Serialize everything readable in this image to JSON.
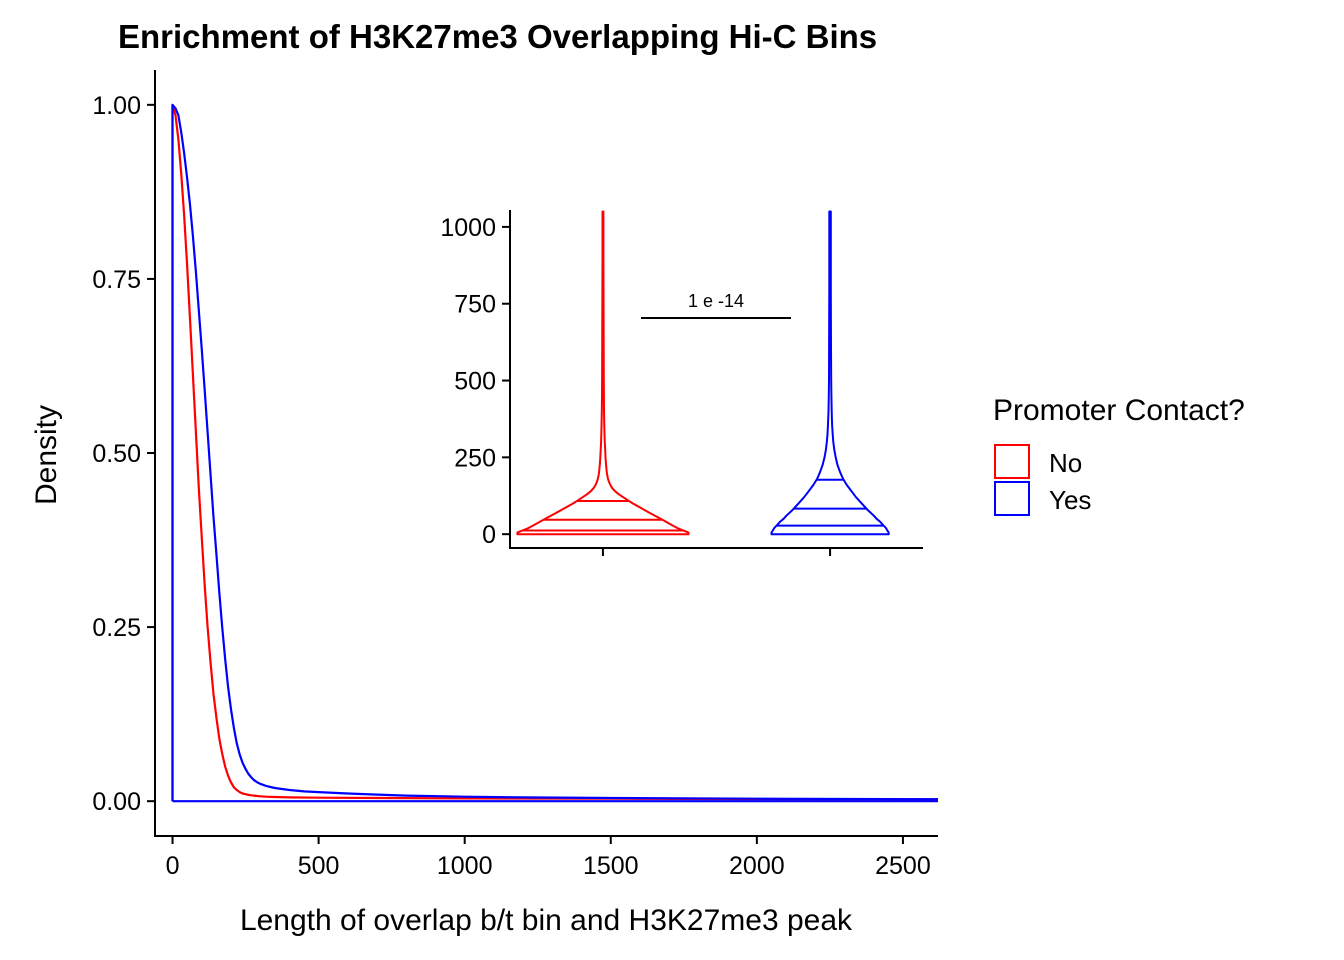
{
  "chart_data": [
    {
      "type": "line",
      "title": "Enrichment of H3K27me3 Overlapping Hi-C Bins",
      "xlabel": "Length of overlap b/t bin and H3K27me3 peak",
      "ylabel": "Density",
      "xlim": [
        -60,
        2620
      ],
      "ylim": [
        -0.05,
        1.05
      ],
      "x_ticks": [
        0,
        500,
        1000,
        1500,
        2000,
        2500
      ],
      "x_tick_labels": [
        "0",
        "500",
        "1000",
        "1500",
        "2000",
        "2500"
      ],
      "y_ticks": [
        0,
        0.25,
        0.5,
        0.75,
        1.0
      ],
      "y_tick_labels": [
        "0.00",
        "0.25",
        "0.50",
        "0.75",
        "1.00"
      ],
      "grid": false,
      "legend": {
        "title": "Promoter Contact?",
        "placement": "right",
        "entries": [
          "No",
          "Yes"
        ]
      },
      "series": [
        {
          "name": "No",
          "color": "#ff0000",
          "x": [
            0,
            0,
            10,
            20,
            30,
            40,
            50,
            60,
            70,
            80,
            90,
            100,
            110,
            120,
            130,
            140,
            150,
            160,
            170,
            180,
            190,
            200,
            210,
            220,
            230,
            240,
            250,
            260,
            270,
            280,
            290,
            300,
            320,
            350,
            400,
            500,
            700,
            1000,
            1500,
            2000,
            2620
          ],
          "y": [
            0,
            1.0,
            0.985,
            0.95,
            0.9,
            0.84,
            0.77,
            0.69,
            0.61,
            0.53,
            0.45,
            0.38,
            0.31,
            0.25,
            0.2,
            0.155,
            0.12,
            0.09,
            0.068,
            0.05,
            0.037,
            0.027,
            0.02,
            0.016,
            0.013,
            0.011,
            0.01,
            0.009,
            0.0085,
            0.008,
            0.0075,
            0.007,
            0.0065,
            0.006,
            0.0055,
            0.005,
            0.0045,
            0.004,
            0.0035,
            0.003,
            0.0025
          ]
        },
        {
          "name": "Yes",
          "color": "#0000ff",
          "x": [
            0,
            0,
            10,
            20,
            30,
            40,
            50,
            60,
            70,
            80,
            90,
            100,
            110,
            120,
            130,
            140,
            150,
            160,
            170,
            180,
            190,
            200,
            210,
            220,
            230,
            240,
            250,
            260,
            270,
            280,
            290,
            300,
            320,
            350,
            400,
            450,
            500,
            600,
            700,
            800,
            1000,
            1200,
            1500,
            2000,
            2620
          ],
          "y": [
            0,
            1.0,
            0.995,
            0.985,
            0.96,
            0.93,
            0.895,
            0.855,
            0.81,
            0.76,
            0.705,
            0.65,
            0.59,
            0.53,
            0.47,
            0.41,
            0.355,
            0.3,
            0.25,
            0.205,
            0.165,
            0.132,
            0.105,
            0.083,
            0.067,
            0.055,
            0.046,
            0.039,
            0.034,
            0.03,
            0.027,
            0.025,
            0.022,
            0.019,
            0.016,
            0.014,
            0.013,
            0.011,
            0.0095,
            0.008,
            0.0065,
            0.0055,
            0.0045,
            0.0035,
            0.0028
          ]
        },
        {
          "name": "Yes-baseline",
          "color": "#0000ff",
          "x": [
            0,
            2620
          ],
          "y": [
            0,
            0
          ]
        }
      ]
    },
    {
      "type": "violin",
      "inset": true,
      "ylim": [
        -45,
        1055
      ],
      "y_ticks": [
        0,
        250,
        500,
        750,
        1000
      ],
      "y_tick_labels": [
        "0",
        "250",
        "500",
        "750",
        "1000"
      ],
      "categories": [
        "No",
        "Yes"
      ],
      "series": [
        {
          "name": "No",
          "color": "#ff0000",
          "profile_y": [
            0,
            5,
            10,
            15,
            20,
            30,
            40,
            50,
            60,
            70,
            80,
            90,
            100,
            110,
            120,
            130,
            140,
            150,
            160,
            170,
            180,
            190,
            200,
            225,
            250,
            275,
            300,
            325,
            350,
            400,
            450,
            500,
            600,
            700,
            800,
            900,
            1000,
            1050
          ],
          "profile_halfwidth": [
            0.92,
            0.92,
            0.88,
            0.84,
            0.8,
            0.74,
            0.68,
            0.62,
            0.56,
            0.5,
            0.44,
            0.38,
            0.32,
            0.27,
            0.22,
            0.17,
            0.13,
            0.1,
            0.08,
            0.065,
            0.055,
            0.048,
            0.042,
            0.034,
            0.028,
            0.024,
            0.02,
            0.017,
            0.015,
            0.012,
            0.01,
            0.009,
            0.008,
            0.007,
            0.006,
            0.005,
            0.005,
            0.005
          ],
          "quantiles": [
            12,
            47,
            108
          ]
        },
        {
          "name": "Yes",
          "color": "#0000ff",
          "profile_y": [
            0,
            5,
            10,
            20,
            30,
            40,
            50,
            60,
            80,
            100,
            120,
            140,
            160,
            180,
            200,
            225,
            250,
            275,
            300,
            325,
            350,
            375,
            400,
            450,
            500,
            600,
            700,
            800,
            900,
            1000,
            1050
          ],
          "profile_halfwidth": [
            0.63,
            0.63,
            0.62,
            0.6,
            0.57,
            0.54,
            0.5,
            0.47,
            0.4,
            0.34,
            0.28,
            0.23,
            0.18,
            0.14,
            0.11,
            0.08,
            0.06,
            0.045,
            0.035,
            0.028,
            0.023,
            0.02,
            0.017,
            0.014,
            0.012,
            0.01,
            0.009,
            0.008,
            0.008,
            0.008,
            0.008
          ],
          "quantiles": [
            28,
            83,
            177
          ]
        }
      ],
      "annotation": {
        "label": "1 e -14",
        "y": 703
      }
    }
  ]
}
